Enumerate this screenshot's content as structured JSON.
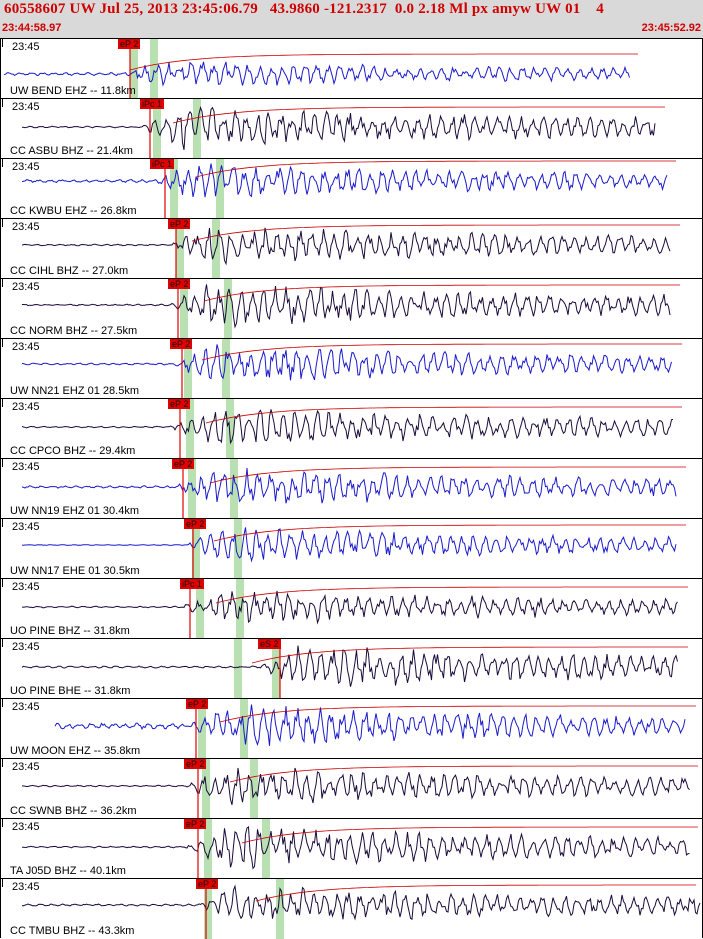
{
  "header": {
    "title": "60558607 UW Jul 25, 2013 23:45:06.79   43.9860 -121.2317  0.0 2.18 Ml px amyw UW 01    4",
    "start_time": "23:44:58.97",
    "end_time": "23:45:52.92"
  },
  "colors": {
    "header_text": "#d00000",
    "pick": "#e00000",
    "band": "#b8e0b0",
    "trace_blue": "#1a1acc",
    "trace_dark": "#1a0a3a",
    "coda_red": "#cc0000"
  },
  "traces": [
    {
      "time_label": "23:45",
      "station": "UW BEND EHZ -- 11.8km",
      "pick": "eP 2",
      "color": "blue"
    },
    {
      "time_label": "23:45",
      "station": "CC ASBU BHZ -- 21.4km",
      "pick": "iPc 1",
      "color": "dark"
    },
    {
      "time_label": "23:45",
      "station": "CC KWBU EHZ -- 26.8km",
      "pick": "iPc 1",
      "color": "blue"
    },
    {
      "time_label": "23:45",
      "station": "CC CIHL BHZ -- 27.0km",
      "pick": "eP 2",
      "color": "dark"
    },
    {
      "time_label": "23:45",
      "station": "CC NORM BHZ -- 27.5km",
      "pick": "eP 2",
      "color": "dark"
    },
    {
      "time_label": "23:45",
      "station": "UW NN21 EHZ 01 28.5km",
      "pick": "eP 2",
      "color": "blue"
    },
    {
      "time_label": "23:45",
      "station": "CC CPCO BHZ -- 29.4km",
      "pick": "eP 2",
      "color": "dark"
    },
    {
      "time_label": "23:45",
      "station": "UW NN19 EHZ 01 30.4km",
      "pick": "eP 2",
      "color": "blue"
    },
    {
      "time_label": "23:45",
      "station": "UW NN17 EHE 01 30.5km",
      "pick": "eP 2",
      "color": "blue"
    },
    {
      "time_label": "23:45",
      "station": "UO PINE BHZ -- 31.8km",
      "pick": "iPc 1",
      "color": "dark"
    },
    {
      "time_label": "23:45",
      "station": "UO PINE BHE -- 31.8km",
      "pick": "eS 2",
      "color": "dark"
    },
    {
      "time_label": "23:45",
      "station": "UW MOON EHZ -- 35.8km",
      "pick": "eP 2",
      "color": "blue"
    },
    {
      "time_label": "23:45",
      "station": "CC SWNB BHZ -- 36.2km",
      "pick": "eP 2",
      "color": "dark"
    },
    {
      "time_label": "23:45",
      "station": "TA J05D BHZ -- 40.1km",
      "pick": "eP 2",
      "color": "dark"
    },
    {
      "time_label": "23:45",
      "station": "CC TMBU BHZ -- 43.3km",
      "pick": "eP 2",
      "color": "dark"
    }
  ]
}
